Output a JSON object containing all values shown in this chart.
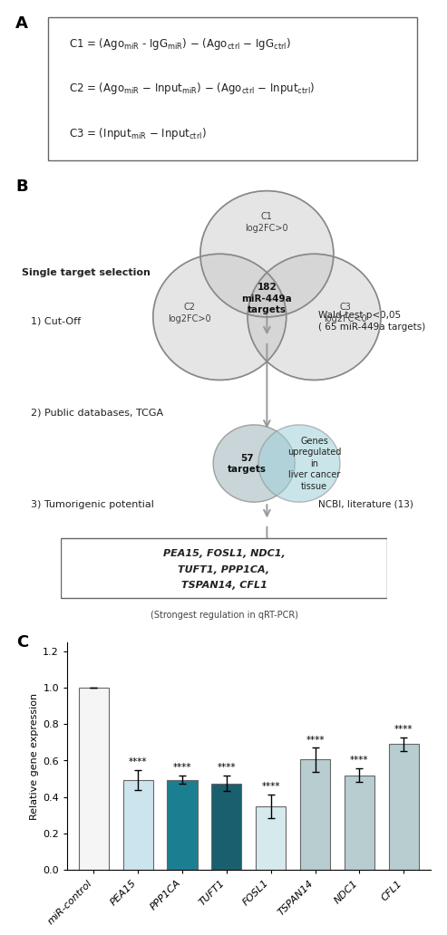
{
  "bar_categories": [
    "miR-control",
    "PEA15",
    "PPP1CA",
    "TUFT1",
    "FOSL1",
    "TSPAN14",
    "NDC1",
    "CFL1"
  ],
  "bar_values": [
    1.0,
    0.495,
    0.495,
    0.475,
    0.35,
    0.605,
    0.52,
    0.69
  ],
  "bar_errors": [
    0.0,
    0.055,
    0.022,
    0.042,
    0.065,
    0.065,
    0.038,
    0.038
  ],
  "bar_colors": [
    "#f5f5f5",
    "#cce4ee",
    "#1b7f91",
    "#1a5f6e",
    "#d6eaed",
    "#b8cdd0",
    "#b8cdd0",
    "#b8cdd0"
  ],
  "bar_edgecolors": [
    "#666666",
    "#666666",
    "#666666",
    "#666666",
    "#666666",
    "#666666",
    "#666666",
    "#666666"
  ],
  "ylabel": "Relative gene expression",
  "ylim": [
    0,
    1.25
  ],
  "yticks": [
    0.0,
    0.2,
    0.4,
    0.6,
    0.8,
    1.0,
    1.2
  ],
  "significance": [
    "",
    "****",
    "****",
    "****",
    "****",
    "****",
    "****",
    "****"
  ],
  "fig_bg": "#ffffff"
}
